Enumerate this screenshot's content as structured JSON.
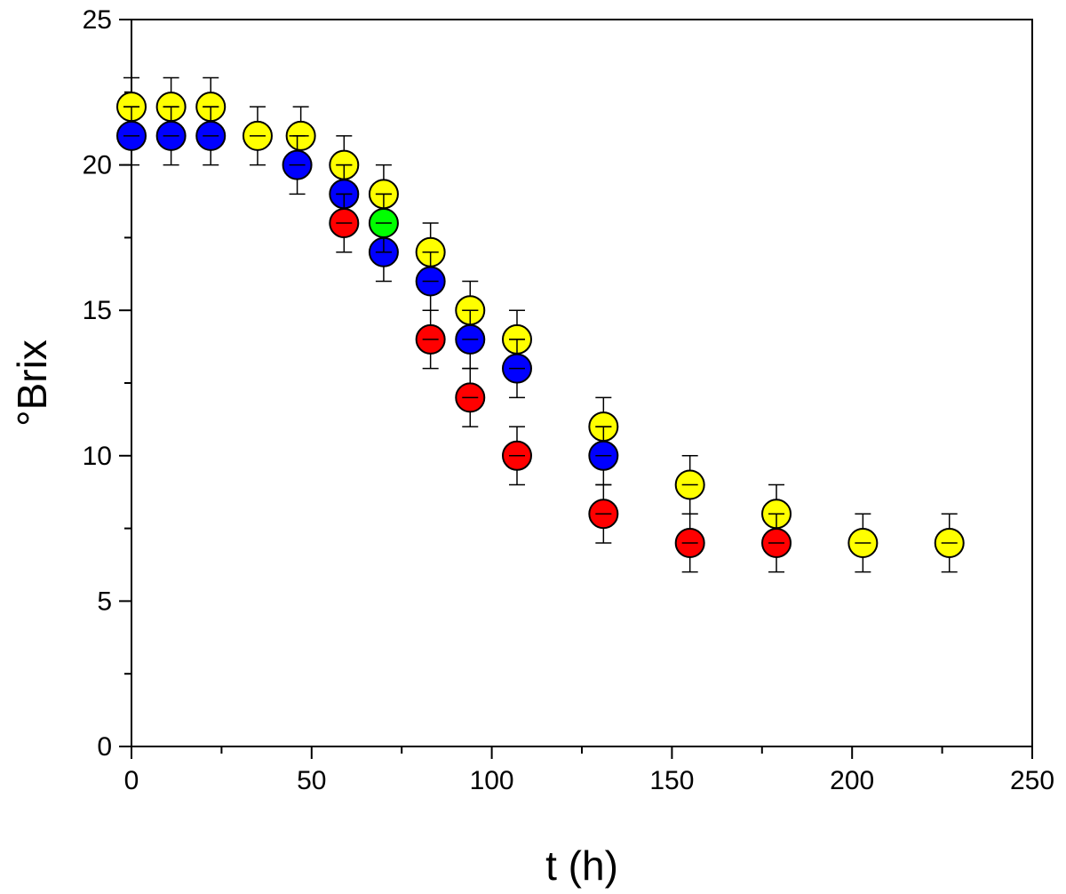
{
  "chart_data": {
    "type": "scatter",
    "xlabel": "t (h)",
    "ylabel": "°Brix",
    "xlim": [
      0,
      250
    ],
    "ylim": [
      0,
      25
    ],
    "x_ticks": [
      0,
      50,
      100,
      150,
      200,
      250
    ],
    "y_ticks": [
      0,
      5,
      10,
      15,
      20,
      25
    ],
    "grid": false,
    "legend": "none",
    "error_bar": 1,
    "series": [
      {
        "color": "#ffff00",
        "points": [
          {
            "x": 0,
            "y": 22
          },
          {
            "x": 11,
            "y": 22
          },
          {
            "x": 22,
            "y": 22
          },
          {
            "x": 35,
            "y": 21
          },
          {
            "x": 47,
            "y": 21
          },
          {
            "x": 59,
            "y": 20
          },
          {
            "x": 70,
            "y": 19
          },
          {
            "x": 83,
            "y": 17
          },
          {
            "x": 94,
            "y": 15
          },
          {
            "x": 107,
            "y": 14
          },
          {
            "x": 131,
            "y": 11
          },
          {
            "x": 155,
            "y": 9
          },
          {
            "x": 179,
            "y": 8
          },
          {
            "x": 203,
            "y": 7
          },
          {
            "x": 227,
            "y": 7
          }
        ]
      },
      {
        "color": "#0000ff",
        "points": [
          {
            "x": 0,
            "y": 21
          },
          {
            "x": 11,
            "y": 21
          },
          {
            "x": 22,
            "y": 21
          },
          {
            "x": 46,
            "y": 20
          },
          {
            "x": 59,
            "y": 19
          },
          {
            "x": 70,
            "y": 17
          },
          {
            "x": 83,
            "y": 16
          },
          {
            "x": 94,
            "y": 14
          },
          {
            "x": 107,
            "y": 13
          },
          {
            "x": 131,
            "y": 10
          }
        ]
      },
      {
        "color": "#ff0000",
        "points": [
          {
            "x": 59,
            "y": 18
          },
          {
            "x": 83,
            "y": 14
          },
          {
            "x": 94,
            "y": 12
          },
          {
            "x": 107,
            "y": 10
          },
          {
            "x": 131,
            "y": 8
          },
          {
            "x": 155,
            "y": 7
          },
          {
            "x": 179,
            "y": 7
          }
        ]
      },
      {
        "color": "#00ff00",
        "points": [
          {
            "x": 70,
            "y": 18
          }
        ]
      }
    ]
  }
}
